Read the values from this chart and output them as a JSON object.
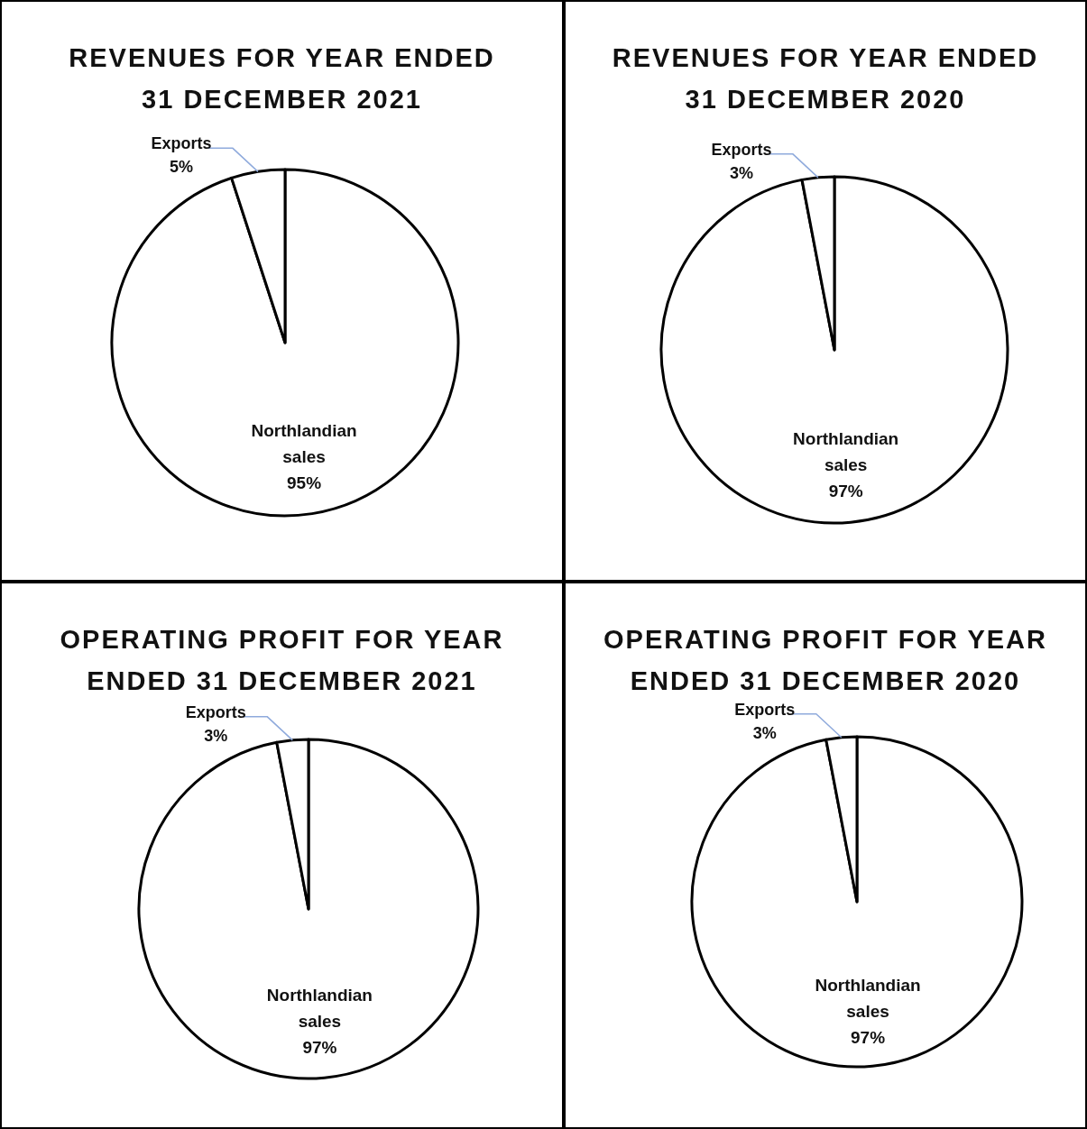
{
  "chart_data": [
    {
      "type": "pie",
      "title": "REVENUES FOR YEAR ENDED 31 DECEMBER 2021",
      "categories": [
        "Northlandian sales",
        "Exports"
      ],
      "values": [
        95,
        5
      ],
      "colors": [
        "#ffffff",
        "#ffffff"
      ],
      "value_labels": [
        "95%",
        "5%"
      ]
    },
    {
      "type": "pie",
      "title": "REVENUES FOR YEAR ENDED 31 DECEMBER 2020",
      "categories": [
        "Northlandian sales",
        "Exports"
      ],
      "values": [
        97,
        3
      ],
      "colors": [
        "#ffffff",
        "#ffffff"
      ],
      "value_labels": [
        "97%",
        "3%"
      ]
    },
    {
      "type": "pie",
      "title": "OPERATING PROFIT FOR YEAR ENDED 31 DECEMBER 2021",
      "categories": [
        "Northlandian sales",
        "Exports"
      ],
      "values": [
        97,
        3
      ],
      "colors": [
        "#ffffff",
        "#ffffff"
      ],
      "value_labels": [
        "97%",
        "3%"
      ]
    },
    {
      "type": "pie",
      "title": "OPERATING PROFIT FOR YEAR ENDED 31 DECEMBER 2020",
      "categories": [
        "Northlandian sales",
        "Exports"
      ],
      "values": [
        97,
        3
      ],
      "colors": [
        "#ffffff",
        "#ffffff"
      ],
      "value_labels": [
        "97%",
        "3%"
      ]
    }
  ]
}
